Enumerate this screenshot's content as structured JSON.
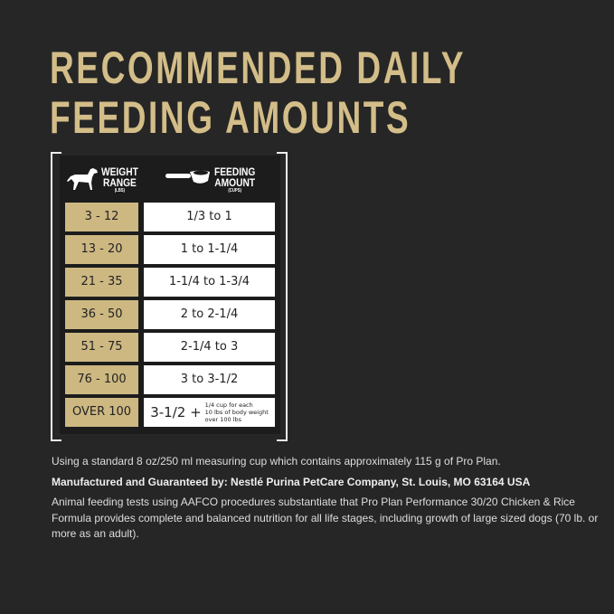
{
  "title": {
    "line1": "RECOMMENDED DAILY",
    "line2": "FEEDING AMOUNTS"
  },
  "table": {
    "weight_header": {
      "line1": "WEIGHT",
      "line2": "RANGE",
      "unit": "(LBS)",
      "icon": "dog-icon"
    },
    "feeding_header": {
      "line1": "FEEDING",
      "line2": "AMOUNT",
      "unit": "(CUPS)",
      "icon": "measuring-cup-icon"
    },
    "rows": [
      {
        "weight": "3 - 12",
        "amount": "1/3 to 1"
      },
      {
        "weight": "13 - 20",
        "amount": "1 to 1-1/4"
      },
      {
        "weight": "21 - 35",
        "amount": "1-1/4 to 1-3/4"
      },
      {
        "weight": "36 - 50",
        "amount": "2 to 2-1/4"
      },
      {
        "weight": "51 - 75",
        "amount": "2-1/4 to 3"
      },
      {
        "weight": "76 - 100",
        "amount": "3 to 3-1/2"
      },
      {
        "weight": "OVER 100",
        "amount": "3-1/2 +",
        "note_l1": "1/4 cup for each",
        "note_l2": "10 lbs of body weight",
        "note_l3": "over 100 lbs"
      }
    ]
  },
  "footer": {
    "cup_note": "Using a standard 8 oz/250 ml measuring cup which contains approximately 115 g of Pro Plan.",
    "manufacturer": "Manufactured and Guaranteed by: Nestlé Purina PetCare Company, St. Louis, MO 63164 USA",
    "aafco": "Animal feeding tests using AAFCO procedures substantiate that Pro Plan Performance 30/20 Chicken & Rice Formula provides complete and balanced nutrition for all life stages, including growth of large sized dogs (70 lb. or more as an adult)."
  },
  "colors": {
    "gold": "#cdb882",
    "background": "#262626"
  }
}
